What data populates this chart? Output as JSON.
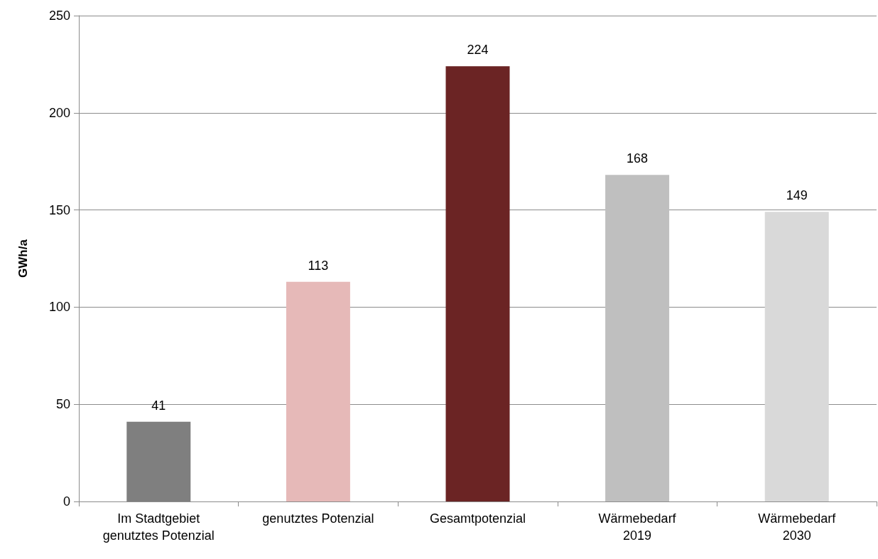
{
  "chart_data": {
    "type": "bar",
    "ylabel": "GWh/a",
    "categories": [
      "Im Stadtgebiet\ngenutztes Potenzial",
      "genutztes Potenzial",
      "Gesamtpotenzial",
      "Wärmebedarf\n2019",
      "Wärmebedarf\n2030"
    ],
    "values": [
      41,
      113,
      224,
      168,
      149
    ],
    "colors": [
      "#7f7f7f",
      "#e6b9b8",
      "#6b2424",
      "#bfbfbf",
      "#d9d9d9"
    ],
    "ylim": [
      0,
      250
    ],
    "yticks": [
      0,
      50,
      100,
      150,
      200,
      250
    ],
    "grid": "y",
    "data_labels": true
  }
}
